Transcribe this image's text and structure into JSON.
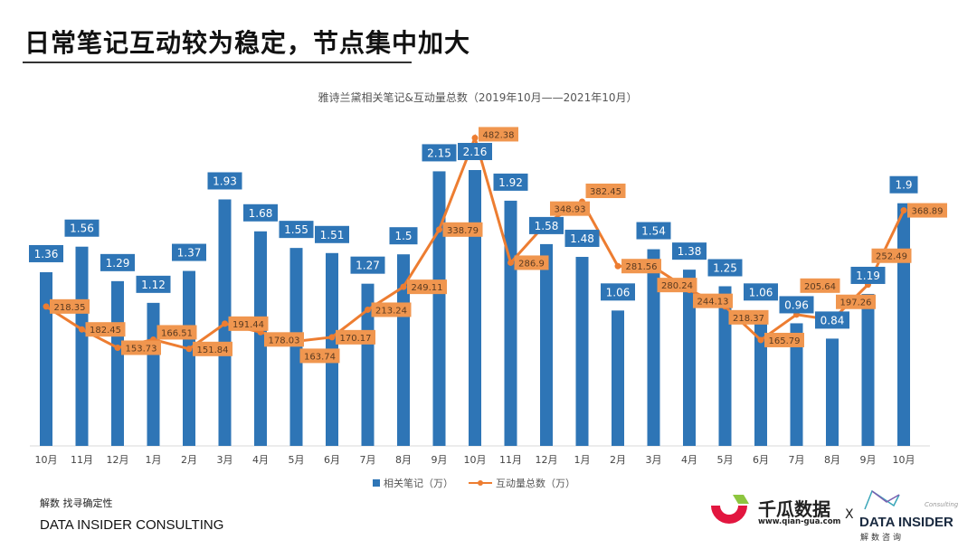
{
  "heading": "日常笔记互动较为稳定，节点集中加大",
  "chart_data": {
    "type": "bar+line",
    "title": "雅诗兰黛相关笔记&互动量总数（2019年10月——2021年10月）",
    "categories": [
      "10月",
      "11月",
      "12月",
      "1月",
      "2月",
      "3月",
      "4月",
      "5月",
      "6月",
      "7月",
      "8月",
      "9月",
      "10月",
      "11月",
      "12月",
      "1月",
      "2月",
      "3月",
      "4月",
      "5月",
      "6月",
      "7月",
      "8月",
      "9月",
      "10月"
    ],
    "series": [
      {
        "name": "相关笔记（万）",
        "type": "bar",
        "color": "#2E75B6",
        "axis": "left",
        "values": [
          1.36,
          1.56,
          1.29,
          1.12,
          1.37,
          1.93,
          1.68,
          1.55,
          1.51,
          1.27,
          1.5,
          2.15,
          2.16,
          1.92,
          1.58,
          1.48,
          1.06,
          1.54,
          1.38,
          1.25,
          1.06,
          0.96,
          0.84,
          1.19,
          1.9
        ]
      },
      {
        "name": "互动量总数（万）",
        "type": "line",
        "color": "#ED7D31",
        "axis": "right",
        "values": [
          218.35,
          182.45,
          153.73,
          166.51,
          151.84,
          191.44,
          178.03,
          163.74,
          170.17,
          213.24,
          249.11,
          338.79,
          482.38,
          286.9,
          348.93,
          382.45,
          281.56,
          280.24,
          244.13,
          218.37,
          165.79,
          205.64,
          197.26,
          252.49,
          368.89
        ]
      }
    ],
    "ylim_left": [
      0,
      2.5
    ],
    "ylim_right": [
      0,
      500
    ],
    "grid": false,
    "legend": "bottom"
  },
  "footer": {
    "slogan": "解数 找寻确定性",
    "brand": "DATA INSIDER CONSULTING"
  },
  "logos": {
    "qiangua_name": "千瓜数据",
    "qiangua_url": "www.qian-gua.com",
    "x": "X",
    "datainsider": "DATA INSIDER",
    "datainsider_cn": "解数咨询",
    "consulting": "Consulting"
  }
}
